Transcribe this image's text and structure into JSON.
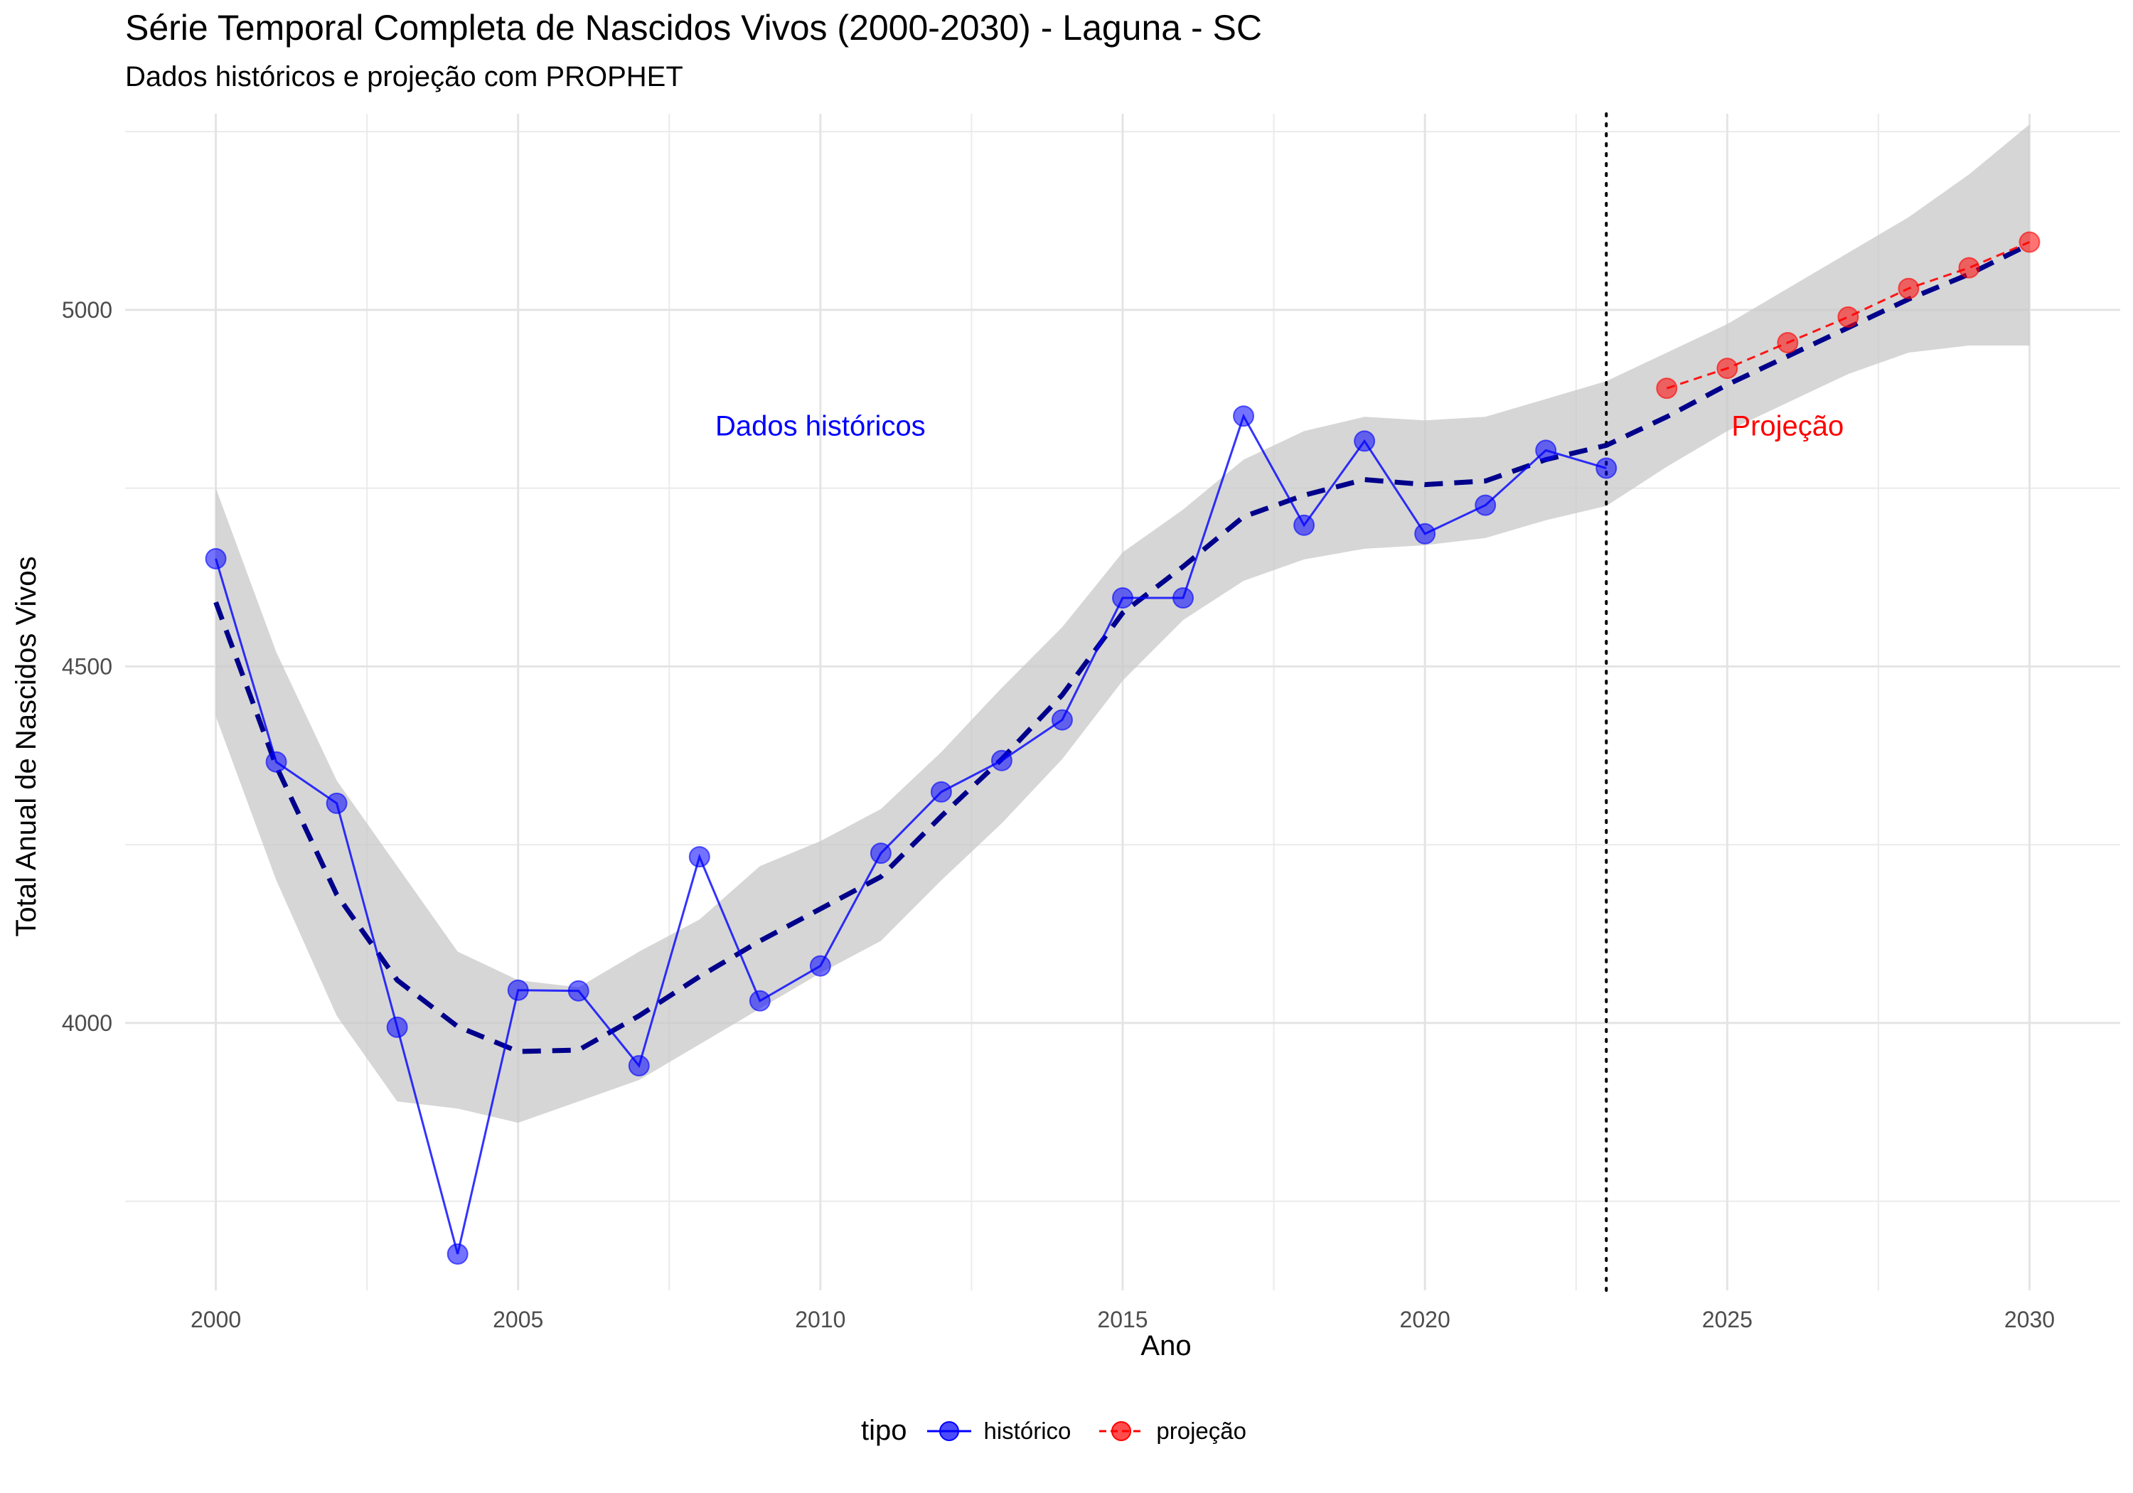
{
  "chart_data": {
    "type": "line",
    "title": "Série Temporal Completa de Nascidos Vivos (2000-2030) -  Laguna - SC",
    "subtitle": "Dados históricos e projeção com PROPHET",
    "xlabel": "Ano",
    "ylabel": "Total Anual de Nascidos Vivos",
    "xlim": [
      1998.5,
      2031.5
    ],
    "ylim": [
      3625,
      5275
    ],
    "x_ticks": [
      2000,
      2005,
      2010,
      2015,
      2020,
      2025,
      2030
    ],
    "x_tick_labels": [
      "2000",
      "2005",
      "2010",
      "2015",
      "2020",
      "2025",
      "2030"
    ],
    "y_ticks": [
      4000,
      4500,
      5000
    ],
    "y_tick_labels": [
      "4000",
      "4500",
      "5000"
    ],
    "grid": true,
    "legend_title": "tipo",
    "legend_position": "bottom",
    "series": [
      {
        "name": "histórico",
        "color": "#0000FF",
        "x": [
          2000,
          2001,
          2002,
          2003,
          2004,
          2005,
          2006,
          2007,
          2008,
          2009,
          2010,
          2011,
          2012,
          2013,
          2014,
          2015,
          2016,
          2017,
          2018,
          2019,
          2020,
          2021,
          2022,
          2023
        ],
        "values": [
          4651,
          4366,
          4308,
          3994,
          3676,
          4046,
          4045,
          3940,
          4233,
          4031,
          4080,
          4238,
          4324,
          4368,
          4425,
          4596,
          4596,
          4851,
          4698,
          4816,
          4686,
          4726,
          4803,
          4778
        ]
      },
      {
        "name": "projeção",
        "color": "#FF0000",
        "x": [
          2024,
          2025,
          2026,
          2027,
          2028,
          2029,
          2030
        ],
        "values": [
          4890,
          4918,
          4954,
          4990,
          5030,
          5059,
          5095
        ]
      }
    ],
    "trend": {
      "color": "#00008B",
      "x": [
        2000,
        2001,
        2002,
        2003,
        2004,
        2005,
        2006,
        2007,
        2008,
        2009,
        2010,
        2011,
        2012,
        2013,
        2014,
        2015,
        2016,
        2017,
        2018,
        2019,
        2020,
        2021,
        2022,
        2023,
        2024,
        2025,
        2026,
        2027,
        2028,
        2029,
        2030
      ],
      "values": [
        4590,
        4360,
        4180,
        4060,
        3995,
        3960,
        3962,
        4010,
        4065,
        4115,
        4160,
        4205,
        4290,
        4370,
        4460,
        4575,
        4640,
        4710,
        4740,
        4762,
        4755,
        4760,
        4790,
        4810,
        4850,
        4895,
        4935,
        4975,
        5015,
        5050,
        5092
      ],
      "lower": [
        4430,
        4200,
        4010,
        3890,
        3880,
        3860,
        3890,
        3920,
        3970,
        4020,
        4070,
        4115,
        4200,
        4280,
        4370,
        4480,
        4565,
        4620,
        4650,
        4665,
        4670,
        4680,
        4705,
        4725,
        4780,
        4830,
        4870,
        4910,
        4940,
        4950,
        4950
      ],
      "upper": [
        4750,
        4520,
        4340,
        4220,
        4100,
        4060,
        4050,
        4100,
        4145,
        4220,
        4255,
        4300,
        4380,
        4470,
        4555,
        4660,
        4720,
        4790,
        4830,
        4850,
        4845,
        4850,
        4875,
        4900,
        4940,
        4980,
        5030,
        5080,
        5130,
        5190,
        5260
      ]
    },
    "cutoff_x": 2023,
    "annotations": [
      {
        "text": "Dados históricos",
        "x": 2010,
        "y": 4838,
        "color": "#0000FF"
      },
      {
        "text": "Projeção",
        "x": 2026,
        "y": 4838,
        "color": "#FF0000"
      }
    ]
  }
}
